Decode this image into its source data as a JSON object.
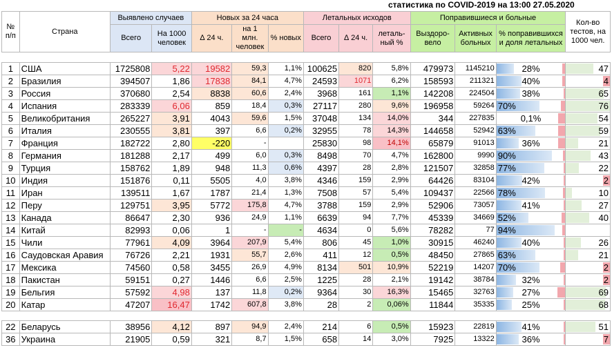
{
  "title": "статистика по COVID-2019 на 13:00 27.05.2020",
  "headers": {
    "num": "№ п/п",
    "country": "Страна",
    "detected": "Выявлено случаев",
    "new24": "Новых за 24 часа",
    "deaths": "Летальных исходов",
    "recovered": "Поправившиеся и больные",
    "tests": "Кол-во тестов, на 1000 чел.",
    "detected_total": "Всего",
    "detected_per1000": "На 1000 человек",
    "new_delta": "∆ 24 ч.",
    "new_per_mln": "на 1 млн. человек",
    "new_pct": "% новых",
    "deaths_total": "Всего",
    "deaths_delta": "∆ 24 ч.",
    "deaths_pct": "леталь-ный %",
    "recovered_count": "Выздоро-вело",
    "active": "Активных больных",
    "recovered_pct": "% поправившихся и доля летальных"
  },
  "rows": [
    {
      "n": "1",
      "country": "США",
      "total": "1725808",
      "per1000": "5,22",
      "new": "19582",
      "new_mln": "59,3",
      "new_pct": "1,1%",
      "d_total": "100625",
      "d_delta": "820",
      "d_pct": "5,8%",
      "rec": "479973",
      "active": "1145210",
      "rec_pct": "28%",
      "tests": "47"
    },
    {
      "n": "2",
      "country": "Бразилия",
      "total": "394507",
      "per1000": "1,86",
      "new": "17838",
      "new_mln": "84,1",
      "new_pct": "4,7%",
      "d_total": "24593",
      "d_delta": "1071",
      "d_pct": "6,2%",
      "rec": "158593",
      "active": "211321",
      "rec_pct": "40%",
      "tests": "4"
    },
    {
      "n": "3",
      "country": "Россия",
      "total": "370680",
      "per1000": "2,54",
      "new": "8838",
      "new_mln": "60,6",
      "new_pct": "2,4%",
      "d_total": "3968",
      "d_delta": "161",
      "d_pct": "1,1%",
      "rec": "142208",
      "active": "224504",
      "rec_pct": "38%",
      "tests": "65"
    },
    {
      "n": "4",
      "country": "Испания",
      "total": "283339",
      "per1000": "6,06",
      "new": "859",
      "new_mln": "18,4",
      "new_pct": "0,3%",
      "d_total": "27117",
      "d_delta": "280",
      "d_pct": "9,6%",
      "rec": "196958",
      "active": "59264",
      "rec_pct": "70%",
      "tests": "76"
    },
    {
      "n": "5",
      "country": "Великобритания",
      "total": "265227",
      "per1000": "3,91",
      "new": "4043",
      "new_mln": "59,6",
      "new_pct": "1,5%",
      "d_total": "37048",
      "d_delta": "134",
      "d_pct": "14,0%",
      "rec": "344",
      "active": "227835",
      "rec_pct": "0,1%",
      "tests": "54"
    },
    {
      "n": "6",
      "country": "Италия",
      "total": "230555",
      "per1000": "3,81",
      "new": "397",
      "new_mln": "6,6",
      "new_pct": "0,2%",
      "d_total": "32955",
      "d_delta": "78",
      "d_pct": "14,3%",
      "rec": "144658",
      "active": "52942",
      "rec_pct": "63%",
      "tests": "59"
    },
    {
      "n": "7",
      "country": "Франция",
      "total": "182722",
      "per1000": "2,80",
      "new": "-220",
      "new_mln": "-",
      "new_pct": "",
      "d_total": "25830",
      "d_delta": "98",
      "d_pct": "14,1%",
      "rec": "65879",
      "active": "91013",
      "rec_pct": "36%",
      "tests": "21"
    },
    {
      "n": "8",
      "country": "Германия",
      "total": "181288",
      "per1000": "2,17",
      "new": "499",
      "new_mln": "6,0",
      "new_pct": "0,3%",
      "d_total": "8498",
      "d_delta": "70",
      "d_pct": "4,7%",
      "rec": "162800",
      "active": "9990",
      "rec_pct": "90%",
      "tests": "43"
    },
    {
      "n": "9",
      "country": "Турция",
      "total": "158762",
      "per1000": "1,89",
      "new": "948",
      "new_mln": "11,3",
      "new_pct": "0,6%",
      "d_total": "4397",
      "d_delta": "28",
      "d_pct": "2,8%",
      "rec": "121507",
      "active": "32858",
      "rec_pct": "77%",
      "tests": "22"
    },
    {
      "n": "10",
      "country": "Индия",
      "total": "151876",
      "per1000": "0,11",
      "new": "5505",
      "new_mln": "4,0",
      "new_pct": "3,8%",
      "d_total": "4346",
      "d_delta": "159",
      "d_pct": "2,9%",
      "rec": "64426",
      "active": "83104",
      "rec_pct": "42%",
      "tests": "2"
    },
    {
      "n": "11",
      "country": "Иран",
      "total": "139511",
      "per1000": "1,67",
      "new": "1787",
      "new_mln": "21,4",
      "new_pct": "1,3%",
      "d_total": "7508",
      "d_delta": "57",
      "d_pct": "5,4%",
      "rec": "109437",
      "active": "22566",
      "rec_pct": "78%",
      "tests": "10"
    },
    {
      "n": "12",
      "country": "Перу",
      "total": "129751",
      "per1000": "3,95",
      "new": "5772",
      "new_mln": "175,8",
      "new_pct": "4,7%",
      "d_total": "3788",
      "d_delta": "159",
      "d_pct": "2,9%",
      "rec": "52906",
      "active": "73057",
      "rec_pct": "41%",
      "tests": "27"
    },
    {
      "n": "13",
      "country": "Канада",
      "total": "86647",
      "per1000": "2,30",
      "new": "936",
      "new_mln": "24,9",
      "new_pct": "1,1%",
      "d_total": "6639",
      "d_delta": "94",
      "d_pct": "7,7%",
      "rec": "45339",
      "active": "34669",
      "rec_pct": "52%",
      "tests": "40"
    },
    {
      "n": "14",
      "country": "Китай",
      "total": "82993",
      "per1000": "0,06",
      "new": "1",
      "new_mln": "-",
      "new_pct": "-",
      "d_total": "4634",
      "d_delta": "0",
      "d_pct": "5,6%",
      "rec": "78282",
      "active": "77",
      "rec_pct": "94%",
      "tests": ""
    },
    {
      "n": "15",
      "country": "Чили",
      "total": "77961",
      "per1000": "4,09",
      "new": "3964",
      "new_mln": "207,9",
      "new_pct": "5,4%",
      "d_total": "806",
      "d_delta": "45",
      "d_pct": "1,0%",
      "rec": "30915",
      "active": "46240",
      "rec_pct": "40%",
      "tests": "26"
    },
    {
      "n": "16",
      "country": "Саудовская Аравия",
      "total": "76726",
      "per1000": "2,21",
      "new": "1931",
      "new_mln": "55,7",
      "new_pct": "2,6%",
      "d_total": "411",
      "d_delta": "12",
      "d_pct": "0,5%",
      "rec": "48450",
      "active": "27865",
      "rec_pct": "63%",
      "tests": "21"
    },
    {
      "n": "17",
      "country": "Мексика",
      "total": "74560",
      "per1000": "0,58",
      "new": "3455",
      "new_mln": "26,9",
      "new_pct": "4,9%",
      "d_total": "8134",
      "d_delta": "501",
      "d_pct": "10,9%",
      "rec": "52219",
      "active": "14207",
      "rec_pct": "70%",
      "tests": "2"
    },
    {
      "n": "18",
      "country": "Пакистан",
      "total": "59151",
      "per1000": "0,27",
      "new": "1446",
      "new_mln": "6,6",
      "new_pct": "2,5%",
      "d_total": "1225",
      "d_delta": "28",
      "d_pct": "2,1%",
      "rec": "19142",
      "active": "38784",
      "rec_pct": "32%",
      "tests": "2"
    },
    {
      "n": "19",
      "country": "Бельгия",
      "total": "57592",
      "per1000": "4,98",
      "new": "137",
      "new_mln": "11,8",
      "new_pct": "0,2%",
      "d_total": "9364",
      "d_delta": "30",
      "d_pct": "16,3%",
      "rec": "15465",
      "active": "32763",
      "rec_pct": "27%",
      "tests": "69"
    },
    {
      "n": "20",
      "country": "Катар",
      "total": "47207",
      "per1000": "16,47",
      "new": "1742",
      "new_mln": "607,8",
      "new_pct": "3,8%",
      "d_total": "28",
      "d_delta": "2",
      "d_pct": "0,06%",
      "rec": "11844",
      "active": "35335",
      "rec_pct": "25%",
      "tests": "68"
    }
  ],
  "extra_rows": [
    {
      "n": "22",
      "country": "Беларусь",
      "total": "38956",
      "per1000": "4,12",
      "new": "897",
      "new_mln": "94,9",
      "new_pct": "2,4%",
      "d_total": "214",
      "d_delta": "6",
      "d_pct": "0,5%",
      "rec": "15923",
      "active": "22819",
      "rec_pct": "41%",
      "tests": "51"
    },
    {
      "n": "36",
      "country": "Украина",
      "total": "21905",
      "per1000": "0,59",
      "new": "321",
      "new_mln": "8,7",
      "new_pct": "1,5%",
      "d_total": "658",
      "d_delta": "14",
      "d_pct": "3,0%",
      "rec": "7925",
      "active": "13322",
      "rec_pct": "36%",
      "tests": "7"
    }
  ],
  "colors": {
    "detected_header": "#dce6f5",
    "new_header": "#fbdfc9",
    "deaths_header": "#f9cfd4",
    "recovered_header": "#c6efa2",
    "recovered_bar": "#9dc3e6",
    "tests_bar": "#e2efd9",
    "tests_low": "#f2a7ad"
  }
}
